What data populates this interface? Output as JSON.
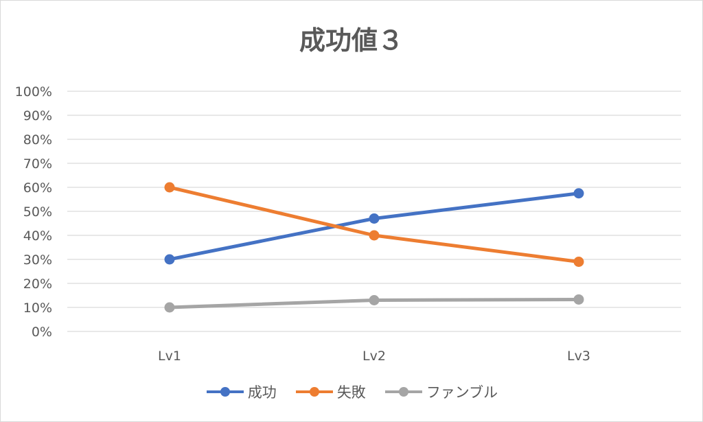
{
  "chart_data": {
    "type": "line",
    "title": "成功値３",
    "categories": [
      "Lv1",
      "Lv2",
      "Lv3"
    ],
    "series": [
      {
        "name": "成功",
        "values": [
          0.3,
          0.47,
          0.575
        ],
        "color": "#4472c4"
      },
      {
        "name": "失敗",
        "values": [
          0.6,
          0.4,
          0.29
        ],
        "color": "#ed7d31"
      },
      {
        "name": "ファンブル",
        "values": [
          0.1,
          0.13,
          0.133
        ],
        "color": "#a5a5a5"
      }
    ],
    "y_ticks": [
      "0%",
      "10%",
      "20%",
      "30%",
      "40%",
      "50%",
      "60%",
      "70%",
      "80%",
      "90%",
      "100%"
    ],
    "ylim": [
      0,
      1
    ],
    "grid": true,
    "legend_position": "bottom"
  }
}
